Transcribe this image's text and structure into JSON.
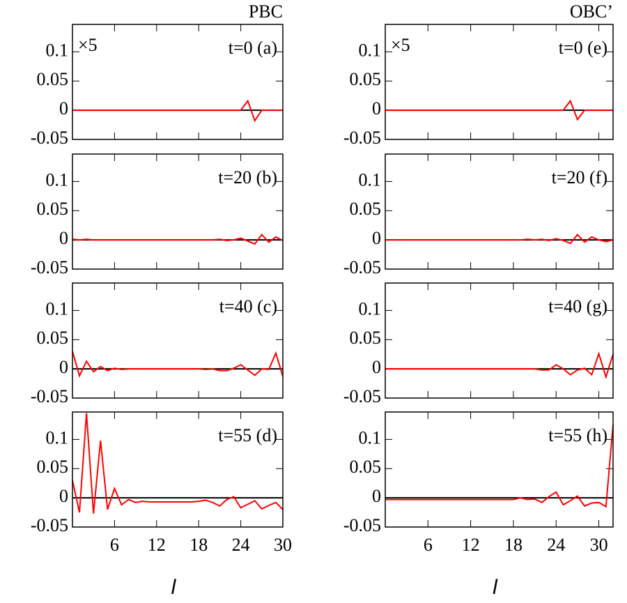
{
  "chart_data": [
    {
      "type": "line",
      "title": "PBC",
      "annotation": "t=0 (a)",
      "scale_note": "×5",
      "color": "#ff0000",
      "x": [
        0,
        1,
        2,
        3,
        4,
        5,
        6,
        7,
        8,
        9,
        10,
        11,
        12,
        13,
        14,
        15,
        16,
        17,
        18,
        19,
        20,
        21,
        22,
        23,
        24,
        25,
        26,
        27,
        28,
        29,
        30
      ],
      "values": [
        0,
        0,
        0,
        0,
        0,
        0,
        0,
        0,
        0,
        0,
        0,
        0,
        0,
        0,
        0,
        0,
        0,
        0,
        0,
        0,
        0,
        0,
        0,
        0,
        0,
        0.016,
        -0.018,
        0,
        0,
        0,
        0
      ],
      "xlim": [
        0,
        30
      ],
      "ylim": [
        -0.05,
        0.147
      ],
      "xticks": [
        6,
        12,
        18,
        24,
        30
      ],
      "yticks": [
        -0.05,
        0,
        0.05,
        0.1
      ],
      "hline": 0
    },
    {
      "type": "line",
      "annotation": "t=20 (b)",
      "color": "#ff0000",
      "x": [
        0,
        1,
        2,
        3,
        4,
        5,
        6,
        7,
        8,
        9,
        10,
        11,
        12,
        13,
        14,
        15,
        16,
        17,
        18,
        19,
        20,
        21,
        22,
        23,
        24,
        25,
        26,
        27,
        28,
        29,
        30
      ],
      "values": [
        0.001,
        0,
        0.001,
        0,
        0,
        0,
        0,
        0,
        0,
        0,
        0,
        0,
        0,
        0,
        0,
        0,
        0,
        0,
        0,
        0,
        0,
        0.001,
        -0.001,
        0,
        0.003,
        -0.002,
        -0.007,
        0.009,
        -0.004,
        0.005,
        -0.001
      ],
      "xlim": [
        0,
        30
      ],
      "ylim": [
        -0.05,
        0.147
      ],
      "xticks": [
        6,
        12,
        18,
        24,
        30
      ],
      "yticks": [
        -0.05,
        0,
        0.05,
        0.1
      ],
      "hline": 0
    },
    {
      "type": "line",
      "annotation": "t=40 (c)",
      "color": "#ff0000",
      "x": [
        0,
        1,
        2,
        3,
        4,
        5,
        6,
        7,
        8,
        9,
        10,
        11,
        12,
        13,
        14,
        15,
        16,
        17,
        18,
        19,
        20,
        21,
        22,
        23,
        24,
        25,
        26,
        27,
        28,
        29,
        30
      ],
      "values": [
        0.03,
        -0.012,
        0.013,
        -0.005,
        0.004,
        -0.003,
        0.001,
        -0.001,
        0,
        0,
        0,
        0,
        0,
        0,
        0,
        0,
        0,
        0,
        0,
        -0.001,
        0,
        -0.003,
        -0.003,
        0.001,
        0.007,
        -0.002,
        -0.011,
        0,
        -0.001,
        0.027,
        -0.013
      ],
      "xlim": [
        0,
        30
      ],
      "ylim": [
        -0.05,
        0.147
      ],
      "xticks": [
        6,
        12,
        18,
        24,
        30
      ],
      "yticks": [
        -0.05,
        0,
        0.05,
        0.1
      ],
      "hline": 0
    },
    {
      "type": "line",
      "annotation": "t=55 (d)",
      "xlabel": "l",
      "color": "#ff0000",
      "x": [
        0,
        1,
        2,
        3,
        4,
        5,
        6,
        7,
        8,
        9,
        10,
        11,
        12,
        13,
        14,
        15,
        16,
        17,
        18,
        19,
        20,
        21,
        22,
        23,
        24,
        25,
        26,
        27,
        28,
        29,
        30
      ],
      "values": [
        0.03,
        -0.025,
        0.145,
        -0.027,
        0.098,
        -0.02,
        0.016,
        -0.012,
        -0.003,
        -0.008,
        -0.006,
        -0.007,
        -0.007,
        -0.007,
        -0.007,
        -0.007,
        -0.007,
        -0.007,
        -0.006,
        -0.004,
        -0.008,
        -0.014,
        -0.003,
        0.002,
        -0.017,
        -0.011,
        -0.005,
        -0.019,
        -0.013,
        -0.008,
        -0.02
      ],
      "xlim": [
        0,
        30
      ],
      "ylim": [
        -0.05,
        0.147
      ],
      "xticks": [
        6,
        12,
        18,
        24,
        30
      ],
      "yticks": [
        -0.05,
        0,
        0.05,
        0.1
      ],
      "hline": 0
    },
    {
      "type": "line",
      "title": "OBC’",
      "annotation": "t=0 (e)",
      "scale_note": "×5",
      "color": "#ff0000",
      "x": [
        0,
        1,
        2,
        3,
        4,
        5,
        6,
        7,
        8,
        9,
        10,
        11,
        12,
        13,
        14,
        15,
        16,
        17,
        18,
        19,
        20,
        21,
        22,
        23,
        24,
        25,
        26,
        27,
        28,
        29,
        30,
        31,
        32
      ],
      "values": [
        0,
        0,
        0,
        0,
        0,
        0,
        0,
        0,
        0,
        0,
        0,
        0,
        0,
        0,
        0,
        0,
        0,
        0,
        0,
        0,
        0,
        0,
        0,
        0,
        0,
        0,
        0.016,
        -0.016,
        0,
        0,
        0,
        0,
        0
      ],
      "xlim": [
        0,
        32
      ],
      "ylim": [
        -0.05,
        0.147
      ],
      "xticks": [
        6,
        12,
        18,
        24,
        30
      ],
      "yticks": [
        -0.05,
        0,
        0.05,
        0.1
      ],
      "hline": 0
    },
    {
      "type": "line",
      "annotation": "t=20 (f)",
      "color": "#ff0000",
      "x": [
        0,
        1,
        2,
        3,
        4,
        5,
        6,
        7,
        8,
        9,
        10,
        11,
        12,
        13,
        14,
        15,
        16,
        17,
        18,
        19,
        20,
        21,
        22,
        23,
        24,
        25,
        26,
        27,
        28,
        29,
        30,
        31,
        32
      ],
      "values": [
        0,
        0,
        0,
        0,
        0,
        0,
        0,
        0,
        0,
        0,
        0,
        0,
        0,
        0,
        0,
        0,
        0,
        0,
        0,
        0,
        0.001,
        0,
        0.001,
        -0.001,
        0.002,
        -0.001,
        -0.006,
        0.009,
        -0.004,
        0.005,
        0,
        -0.003,
        0
      ],
      "xlim": [
        0,
        32
      ],
      "ylim": [
        -0.05,
        0.147
      ],
      "xticks": [
        6,
        12,
        18,
        24,
        30
      ],
      "yticks": [
        -0.05,
        0,
        0.05,
        0.1
      ],
      "hline": 0
    },
    {
      "type": "line",
      "annotation": "t=40 (g)",
      "color": "#ff0000",
      "x": [
        0,
        1,
        2,
        3,
        4,
        5,
        6,
        7,
        8,
        9,
        10,
        11,
        12,
        13,
        14,
        15,
        16,
        17,
        18,
        19,
        20,
        21,
        22,
        23,
        24,
        25,
        26,
        27,
        28,
        29,
        30,
        31,
        32
      ],
      "values": [
        0,
        0,
        0,
        0,
        0,
        0,
        0,
        0,
        0,
        0,
        0,
        0,
        0,
        0,
        0,
        0,
        0,
        0,
        0,
        0,
        0,
        0,
        -0.002,
        -0.002,
        0.007,
        0,
        -0.01,
        -0.002,
        0.001,
        -0.01,
        0.026,
        -0.014,
        0.025
      ],
      "xlim": [
        0,
        32
      ],
      "ylim": [
        -0.05,
        0.147
      ],
      "xticks": [
        6,
        12,
        18,
        24,
        30
      ],
      "yticks": [
        -0.05,
        0,
        0.05,
        0.1
      ],
      "hline": 0
    },
    {
      "type": "line",
      "annotation": "t=55 (h)",
      "xlabel": "l",
      "color": "#ff0000",
      "x": [
        0,
        1,
        2,
        3,
        4,
        5,
        6,
        7,
        8,
        9,
        10,
        11,
        12,
        13,
        14,
        15,
        16,
        17,
        18,
        19,
        20,
        21,
        22,
        23,
        24,
        25,
        26,
        27,
        28,
        29,
        30,
        31,
        32
      ],
      "values": [
        -0.003,
        -0.003,
        -0.003,
        -0.003,
        -0.003,
        -0.003,
        -0.003,
        -0.003,
        -0.003,
        -0.003,
        -0.003,
        -0.003,
        -0.003,
        -0.003,
        -0.003,
        -0.003,
        -0.003,
        -0.003,
        -0.003,
        0,
        -0.003,
        -0.002,
        -0.008,
        0.002,
        0.01,
        -0.012,
        -0.005,
        0.003,
        -0.014,
        -0.009,
        -0.008,
        -0.015,
        0.125
      ],
      "xlim": [
        0,
        32
      ],
      "ylim": [
        -0.05,
        0.147
      ],
      "xticks": [
        6,
        12,
        18,
        24,
        30
      ],
      "yticks": [
        -0.05,
        0,
        0.05,
        0.1
      ],
      "hline": 0
    }
  ]
}
